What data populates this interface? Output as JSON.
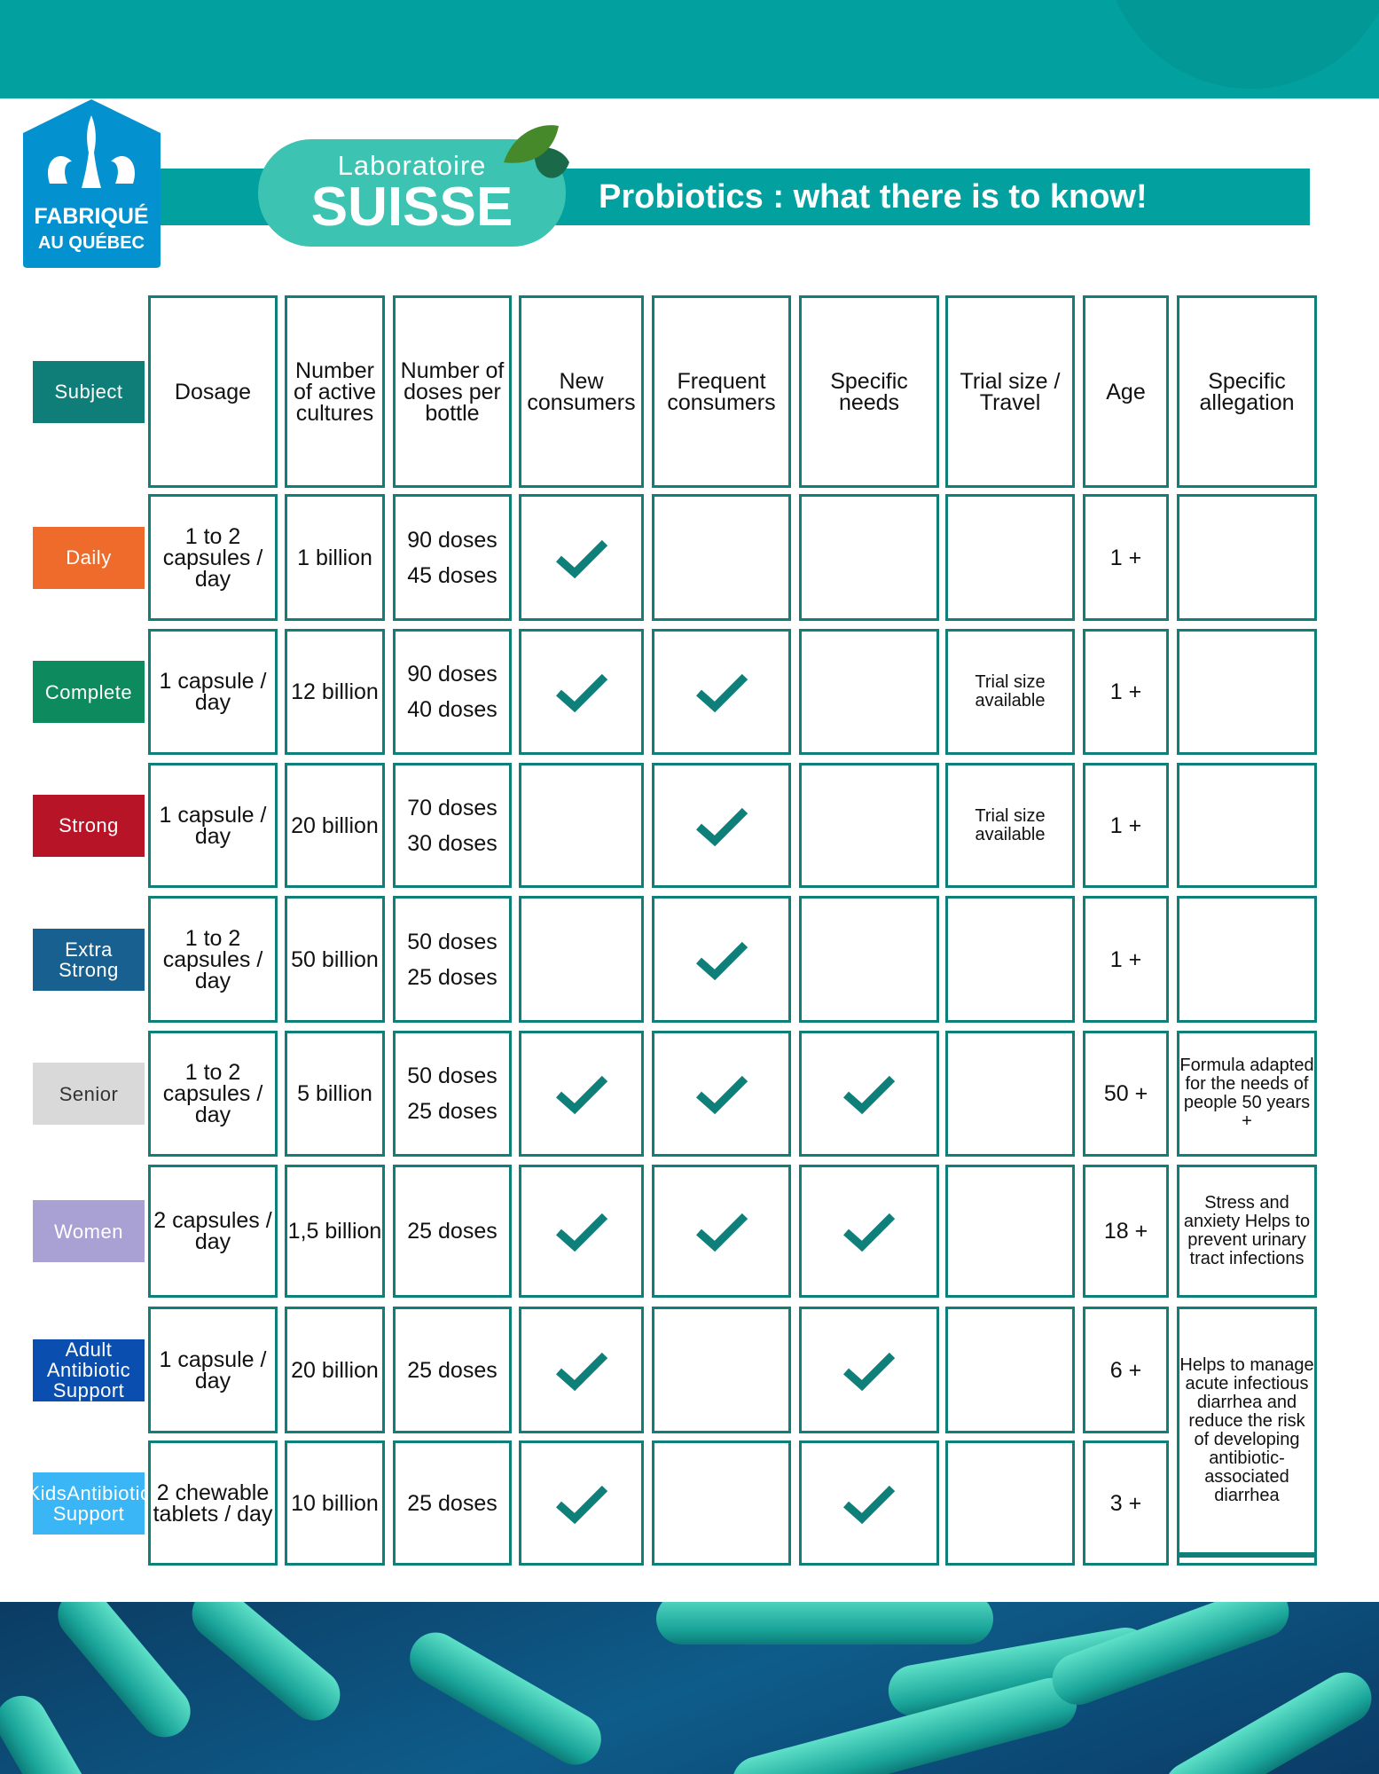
{
  "header": {
    "title": "Probiotics :  what there is to know!",
    "brand_line1": "Laboratoire",
    "brand_line2": "SUISSE",
    "badge_line1": "FABRIQUÉ",
    "badge_line2": "AU QUÉBEC"
  },
  "colors": {
    "accent": "#02a19f",
    "border": "#0f7f7a",
    "check": "#0f7f7a"
  },
  "columns": [
    "Dosage",
    "Number of active cultures",
    "Number of doses per bottle",
    "New consumers",
    "Frequent consumers",
    "Specific needs",
    "Trial size / Travel",
    "Age",
    "Specific allegation"
  ],
  "subject_label": "Subject",
  "rows": [
    {
      "name": "Daily",
      "color": "#ee6b2b",
      "dosage": "1 to 2 capsules / day",
      "cultures": "1 billion",
      "doses": [
        "90 doses",
        "45 doses"
      ],
      "new": true,
      "frequent": false,
      "specific": false,
      "trial": "",
      "age": "1 +",
      "allegation": ""
    },
    {
      "name": "Complete",
      "color": "#0e8a5f",
      "dosage": "1 capsule / day",
      "cultures": "12 billion",
      "doses": [
        "90 doses",
        "40 doses"
      ],
      "new": true,
      "frequent": true,
      "specific": false,
      "trial": "Trial size available",
      "age": "1 +",
      "allegation": ""
    },
    {
      "name": "Strong",
      "color": "#b81427",
      "dosage": "1 capsule / day",
      "cultures": "20 billion",
      "doses": [
        "70 doses",
        "30 doses"
      ],
      "new": false,
      "frequent": true,
      "specific": false,
      "trial": "Trial size available",
      "age": "1 +",
      "allegation": ""
    },
    {
      "name": "Extra Strong",
      "color": "#17608f",
      "dosage": "1 to 2 capsules / day",
      "cultures": "50 billion",
      "doses": [
        "50 doses",
        "25 doses"
      ],
      "new": false,
      "frequent": true,
      "specific": false,
      "trial": "",
      "age": "1  +",
      "allegation": ""
    },
    {
      "name": "Senior",
      "color": "#d9d9d9",
      "dosage": "1 to 2 capsules / day",
      "cultures": "5 billion",
      "doses": [
        "50 doses",
        "25 doses"
      ],
      "new": true,
      "frequent": true,
      "specific": true,
      "trial": "",
      "age": "50 +",
      "allegation": "Formula adapted for the needs of people 50 years +"
    },
    {
      "name": "Women",
      "color": "#a9a1d4",
      "dosage": "2 capsules / day",
      "cultures": "1,5 billion",
      "doses": [
        "25 doses"
      ],
      "new": true,
      "frequent": true,
      "specific": true,
      "trial": "",
      "age": "18 +",
      "allegation": "Stress and anxiety Helps to prevent urinary tract infections"
    },
    {
      "name": "Adult Antibiotic Support",
      "color": "#0a4fb0",
      "dosage": "1 capsule / day",
      "cultures": "20 billion",
      "doses": [
        "25 doses"
      ],
      "new": true,
      "frequent": false,
      "specific": true,
      "trial": "",
      "age": "6 +",
      "allegation": "Helps to manage acute infectious diarrhea and reduce the risk of developing antibiotic-associated diarrhea"
    },
    {
      "name": "KidsAntibiotic Support",
      "color": "#3ab5f5",
      "dosage": "2 chewable tablets / day",
      "cultures": "10 billion",
      "doses": [
        "25 doses"
      ],
      "new": true,
      "frequent": false,
      "specific": true,
      "trial": "",
      "age": "3 +",
      "allegation": null
    }
  ]
}
